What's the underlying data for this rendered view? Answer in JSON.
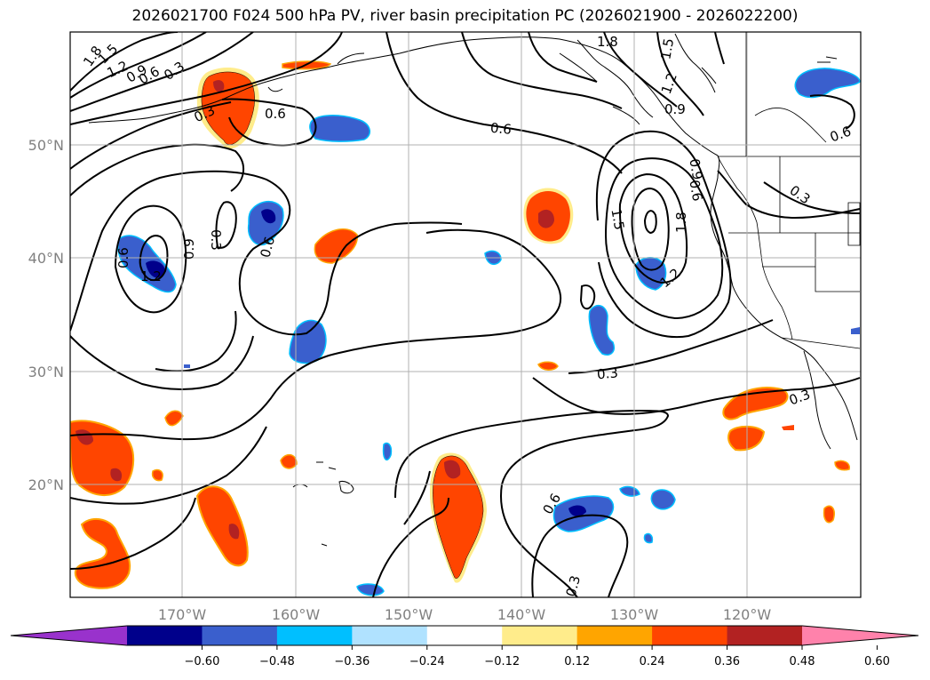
{
  "title": "2026021700 F024 500 hPa PV, river basin precipitation PC (2026021900 - 2026022200)",
  "map": {
    "lon_range": [
      -180,
      -110
    ],
    "lat_range": [
      10,
      60
    ],
    "lon_ticks": [
      "170°W",
      "160°W",
      "150°W",
      "140°W",
      "130°W",
      "120°W"
    ],
    "lat_ticks": [
      "20°N",
      "30°N",
      "40°N",
      "50°N"
    ]
  },
  "contour_labels": [
    "1.8",
    "1.5",
    "1.2",
    "0.9",
    "0.6",
    "0.3",
    "0.3",
    "0.6",
    "0.6",
    "1.8",
    "1.5",
    "1.2",
    "0.9",
    "0.6",
    "0.3",
    "0.6",
    "1.2",
    "0.9",
    "0.6",
    "0.3",
    "0.6",
    "0.9",
    "1.5",
    "1.8",
    "1.2",
    "0.3",
    "0.3",
    "0.6",
    "0.3"
  ],
  "colorbar": {
    "ticks": [
      "−0.60",
      "−0.48",
      "−0.36",
      "−0.24",
      "−0.12",
      "0.12",
      "0.24",
      "0.36",
      "0.48",
      "0.60"
    ],
    "colors": [
      "#9932cc",
      "#00008b",
      "#3a5fcd",
      "#00bfff",
      "#b0e2ff",
      "#ffffff",
      "#ffec8b",
      "#ffa500",
      "#ff4500",
      "#b22222",
      "#ff82ab"
    ]
  }
}
